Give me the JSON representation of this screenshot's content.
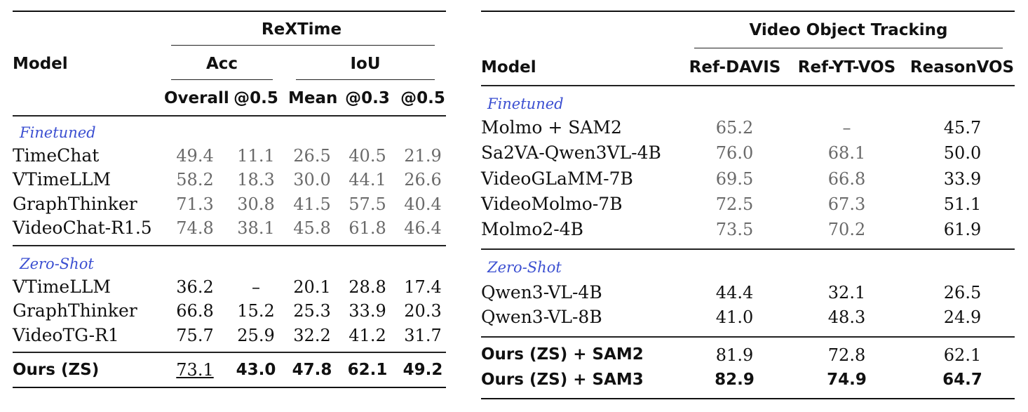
{
  "left": {
    "model_header": "Model",
    "group_header": "ReXTime",
    "sub_acc": "Acc",
    "sub_iou": "IoU",
    "columns": [
      "Overall",
      "@0.5",
      "Mean",
      "@0.3",
      "@0.5"
    ],
    "sections": [
      {
        "label": "Finetuned",
        "rows": [
          {
            "model": "TimeChat",
            "values": [
              "49.4",
              "11.1",
              "26.5",
              "40.5",
              "21.9"
            ]
          },
          {
            "model": "VTimeLLM",
            "values": [
              "58.2",
              "18.3",
              "30.0",
              "44.1",
              "26.6"
            ]
          },
          {
            "model": "GraphThinker",
            "values": [
              "71.3",
              "30.8",
              "41.5",
              "57.5",
              "40.4"
            ]
          },
          {
            "model": "VideoChat-R1.5",
            "values": [
              "74.8",
              "38.1",
              "45.8",
              "61.8",
              "46.4"
            ]
          }
        ]
      },
      {
        "label": "Zero-Shot",
        "rows": [
          {
            "model": "VTimeLLM",
            "values": [
              "36.2",
              "–",
              "20.1",
              "28.8",
              "17.4"
            ]
          },
          {
            "model": "GraphThinker",
            "values": [
              "66.8",
              "15.2",
              "25.3",
              "33.9",
              "20.3"
            ]
          },
          {
            "model": "VideoTG-R1",
            "values": [
              "75.7",
              "25.9",
              "32.2",
              "41.2",
              "31.7"
            ]
          }
        ]
      }
    ],
    "ours": {
      "model": "Ours (ZS)",
      "values": [
        "73.1",
        "43.0",
        "47.8",
        "62.1",
        "49.2"
      ]
    }
  },
  "right": {
    "model_header": "Model",
    "group_header": "Video Object Tracking",
    "columns": [
      "Ref-DAVIS",
      "Ref-YT-VOS",
      "ReasonVOS"
    ],
    "sections": [
      {
        "label": "Finetuned",
        "rows": [
          {
            "model": "Molmo + SAM2",
            "values": [
              "65.2",
              "–",
              "45.7"
            ]
          },
          {
            "model": "Sa2VA-Qwen3VL-4B",
            "values": [
              "76.0",
              "68.1",
              "50.0"
            ]
          },
          {
            "model": "VideoGLaMM-7B",
            "values": [
              "69.5",
              "66.8",
              "33.9"
            ]
          },
          {
            "model": "VideoMolmo-7B",
            "values": [
              "72.5",
              "67.3",
              "51.1"
            ]
          },
          {
            "model": "Molmo2-4B",
            "values": [
              "73.5",
              "70.2",
              "61.9"
            ]
          }
        ]
      },
      {
        "label": "Zero-Shot",
        "rows": [
          {
            "model": "Qwen3-VL-4B",
            "values": [
              "44.4",
              "32.1",
              "26.5"
            ]
          },
          {
            "model": "Qwen3-VL-8B",
            "values": [
              "41.0",
              "48.3",
              "24.9"
            ]
          }
        ]
      }
    ],
    "ours": [
      {
        "model": "Ours (ZS) + SAM2",
        "values": [
          "81.9",
          "72.8",
          "62.1"
        ]
      },
      {
        "model": "Ours (ZS) + SAM3",
        "values": [
          "82.9",
          "74.9",
          "64.7"
        ]
      }
    ]
  }
}
